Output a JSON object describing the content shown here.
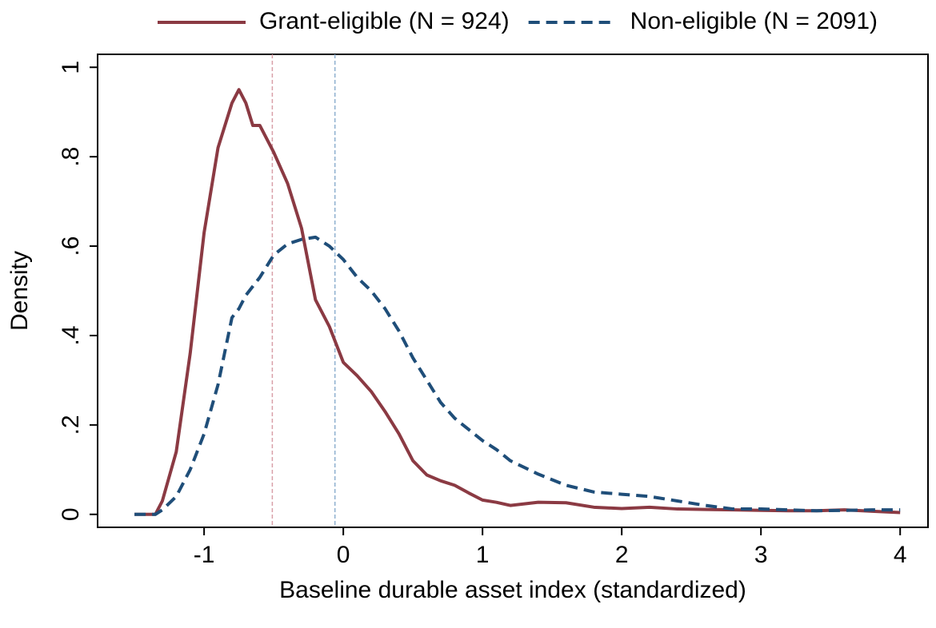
{
  "chart_data": {
    "type": "line",
    "x_label": "Baseline durable asset index (standardized)",
    "y_label": "Density",
    "x": [
      -1.5,
      -1.35,
      -1.3,
      -1.2,
      -1.1,
      -1.0,
      -0.9,
      -0.8,
      -0.75,
      -0.7,
      -0.65,
      -0.6,
      -0.5,
      -0.4,
      -0.3,
      -0.2,
      -0.1,
      0,
      0.1,
      0.2,
      0.3,
      0.4,
      0.5,
      0.6,
      0.7,
      0.8,
      0.9,
      1.0,
      1.1,
      1.2,
      1.4,
      1.6,
      1.8,
      2.0,
      2.2,
      2.4,
      2.6,
      2.8,
      3.0,
      3.2,
      3.4,
      3.6,
      3.8,
      4.0
    ],
    "series": [
      {
        "name": "Grant-eligible (N = 924)",
        "color": "#8b3a43",
        "line_style": "solid",
        "values": [
          0,
          0,
          0.03,
          0.14,
          0.36,
          0.63,
          0.82,
          0.92,
          0.95,
          0.92,
          0.87,
          0.87,
          0.81,
          0.74,
          0.64,
          0.48,
          0.42,
          0.34,
          0.31,
          0.275,
          0.23,
          0.18,
          0.12,
          0.088,
          0.075,
          0.065,
          0.048,
          0.032,
          0.027,
          0.02,
          0.027,
          0.026,
          0.016,
          0.013,
          0.016,
          0.012,
          0.011,
          0.01,
          0.009,
          0.008,
          0.008,
          0.01,
          0.007,
          0.004
        ]
      },
      {
        "name": "Non-eligible (N = 2091)",
        "color": "#1f4e79",
        "line_style": "dashed",
        "values": [
          0,
          0,
          0.01,
          0.04,
          0.1,
          0.18,
          0.29,
          0.44,
          0.46,
          0.49,
          0.51,
          0.53,
          0.58,
          0.605,
          0.615,
          0.62,
          0.6,
          0.57,
          0.53,
          0.5,
          0.46,
          0.41,
          0.35,
          0.3,
          0.25,
          0.215,
          0.19,
          0.165,
          0.145,
          0.12,
          0.09,
          0.065,
          0.05,
          0.045,
          0.04,
          0.03,
          0.02,
          0.012,
          0.012,
          0.01,
          0.008,
          0.009,
          0.01,
          0.01
        ]
      }
    ],
    "vlines": [
      {
        "x": -0.51,
        "color": "#d9a0a8"
      },
      {
        "x": -0.06,
        "color": "#8fb0cf"
      }
    ],
    "xlim": [
      -1.765,
      4.2
    ],
    "ylim": [
      -0.029,
      1.029
    ],
    "xticks": [
      -1,
      0,
      1,
      2,
      3,
      4
    ],
    "yticks": [
      0,
      {
        "value": 0.2,
        "label": ".2"
      },
      {
        "value": 0.4,
        "label": ".4"
      },
      {
        "value": 0.6,
        "label": ".6"
      },
      {
        "value": 0.8,
        "label": ".8"
      },
      1
    ],
    "legend": "top"
  }
}
